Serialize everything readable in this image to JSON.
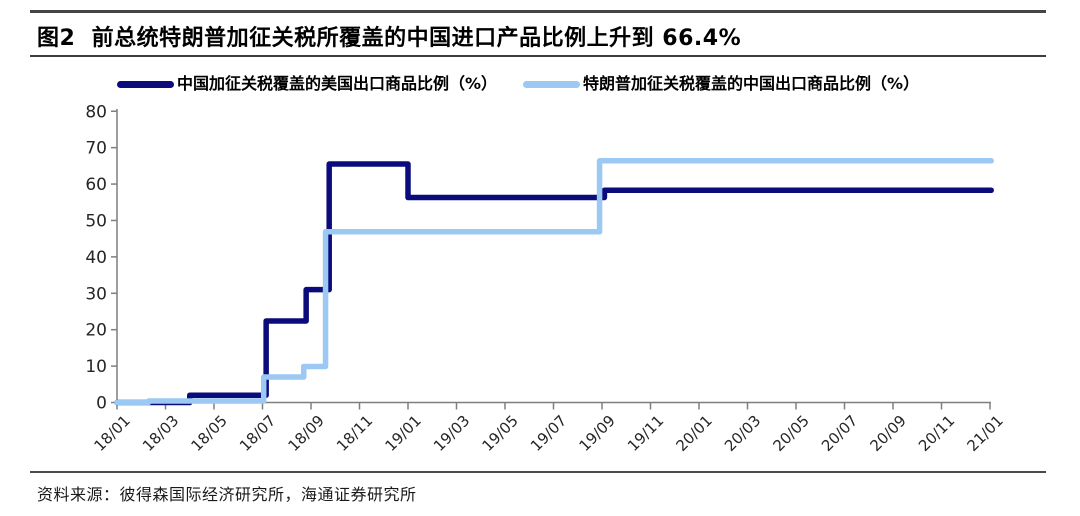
{
  "figure": {
    "title": "图2  前总统特朗普加征关税所覆盖的中国进口产品比例上升到 66.4%",
    "source": "资料来源：彼得森国际经济研究所，海通证券研究所"
  },
  "colors": {
    "series1": "#0b0b7c",
    "series2": "#9cc8f4",
    "axis": "#7f7f7f",
    "tick_text": "#262626",
    "rule": "#454545"
  },
  "chart_data": {
    "type": "line",
    "step": true,
    "title": "",
    "xlabel": "",
    "ylabel": "",
    "grid": false,
    "legend_position": "top",
    "ylim": [
      0,
      80
    ],
    "y_ticks": [
      0,
      10,
      20,
      30,
      40,
      50,
      60,
      70,
      80
    ],
    "x_tick_labels": [
      "18/01",
      "18/03",
      "18/05",
      "18/07",
      "18/09",
      "18/11",
      "19/01",
      "19/03",
      "19/05",
      "19/07",
      "19/09",
      "19/11",
      "20/01",
      "20/03",
      "20/05",
      "20/07",
      "20/09",
      "20/11",
      "21/01"
    ],
    "x_tick_months": [
      0,
      2,
      4,
      6,
      8,
      10,
      12,
      14,
      16,
      18,
      20,
      22,
      24,
      26,
      28,
      30,
      32,
      34,
      36
    ],
    "x_end_month": 36.05,
    "series": [
      {
        "name": "中国加征关税覆盖的美国出口商品比例（%）",
        "color": "#0b0b7c",
        "steps_month_value": [
          [
            0,
            0
          ],
          [
            3.0,
            2.0
          ],
          [
            6.15,
            22.4
          ],
          [
            7.8,
            31.0
          ],
          [
            8.75,
            65.5
          ],
          [
            12.0,
            56.3
          ],
          [
            20.1,
            58.3
          ]
        ]
      },
      {
        "name": "特朗普加征关税覆盖的中国出口商品比例（%）",
        "color": "#9cc8f4",
        "steps_month_value": [
          [
            0,
            0
          ],
          [
            1.3,
            0.4
          ],
          [
            6.05,
            7.0
          ],
          [
            7.7,
            9.9
          ],
          [
            8.6,
            46.9
          ],
          [
            19.9,
            66.4
          ]
        ]
      }
    ]
  }
}
